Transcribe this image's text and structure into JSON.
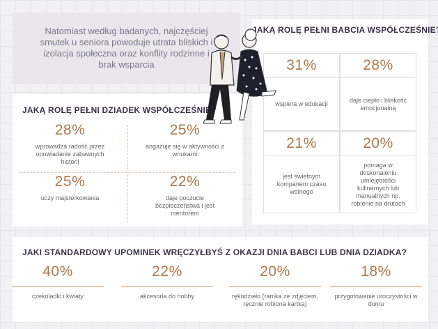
{
  "intro": "Natomiast według badanych, najczęściej smutek u seniora powoduje utrata bliskich i izolacja społeczna oraz konflity rodzinne i brak wsparcia",
  "grandma": {
    "title": "JAKĄ ROLĘ PEŁNI BABCIA WSPÓŁCZEŚNIE?",
    "items": [
      {
        "value": "31%",
        "label": "wspiera w edukacji"
      },
      {
        "value": "28%",
        "label": "daje ciepło i bliskość emocjonalną"
      },
      {
        "value": "21%",
        "label": "jest świetnym kompanem czasu wolnego"
      },
      {
        "value": "20%",
        "label": "pomaga w doskonaleniu umiejętności kulinarnych lub manualnych np. robienie na drutach"
      }
    ]
  },
  "grandpa": {
    "title": "JAKĄ ROLĘ PEŁNI DZIADEK WSPÓŁCZEŚNIE?",
    "items": [
      {
        "value": "28%",
        "label": "wprowadza radość przez opowiadanie zabawnych historii"
      },
      {
        "value": "25%",
        "label": "angażuje się w aktywności z wnukami"
      },
      {
        "value": "25%",
        "label": "uczy majsterkowania"
      },
      {
        "value": "22%",
        "label": "daje poczucie bezpieczeństwa i jest mentorem"
      }
    ]
  },
  "gift": {
    "title": "JAKI STANDARDOWY UPOMINEK WRĘCZYŁBYŚ Z OKAZJI DNIA BABCI LUB DNIA DZIADKA?",
    "items": [
      {
        "value": "40%",
        "label": "czekoladki i kwiaty"
      },
      {
        "value": "22%",
        "label": "akcesoria do hobby"
      },
      {
        "value": "20%",
        "label": "rękodzieło (ramka ze zdjęciem, ręcznie robiona kartka)"
      },
      {
        "value": "18%",
        "label": "przygotowanie uroczystości w domu"
      }
    ]
  }
}
